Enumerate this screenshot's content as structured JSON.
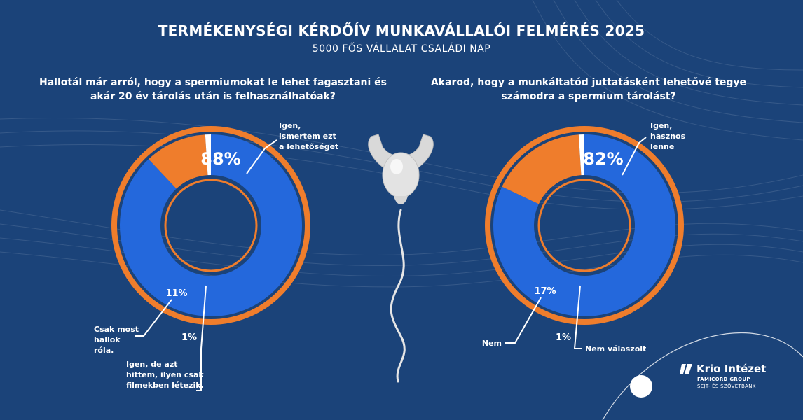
{
  "header": {
    "title": "TERMÉKENYSÉGI KÉRDŐÍV MUNKAVÁLLALÓI FELMÉRÉS 2025",
    "subtitle": "5000 FŐS VÁLLALAT CSALÁDI NAP"
  },
  "colors": {
    "background": "#1b4379",
    "blue": "#2468dc",
    "orange": "#ef7d2c",
    "white": "#ffffff"
  },
  "chart_data": [
    {
      "type": "pie",
      "question": "Hallotál már arról, hogy a spermiumokat le lehet fagasztani és akár 20 év tárolás után is felhasználhatóak?",
      "slices": [
        {
          "label": "Igen, ismertem ezt a lehetőséget",
          "value": 88,
          "display": "88%",
          "color": "#2468dc"
        },
        {
          "label": "Csak most hallok róla.",
          "value": 11,
          "display": "11%",
          "color": "#ef7d2c"
        },
        {
          "label": "Igen, de azt hittem, ilyen csak filmekben létezik.",
          "value": 1,
          "display": "1%",
          "color": "#ffffff"
        }
      ]
    },
    {
      "type": "pie",
      "question": "Akarod, hogy a munkáltatód juttatásként lehetővé tegye számodra a spermium tárolást?",
      "slices": [
        {
          "label": "Igen, hasznos lenne",
          "value": 82,
          "display": "82%",
          "color": "#2468dc"
        },
        {
          "label": "Nem",
          "value": 17,
          "display": "17%",
          "color": "#ef7d2c"
        },
        {
          "label": "Nem válaszolt",
          "value": 1,
          "display": "1%",
          "color": "#ffffff"
        }
      ]
    }
  ],
  "logo": {
    "name": "Krio Intézet",
    "group": "FAMICORD GROUP",
    "tagline": "SEJT- ÉS SZÖVETBANK"
  },
  "illustration": {
    "icon": "muscular-sperm-icon"
  }
}
